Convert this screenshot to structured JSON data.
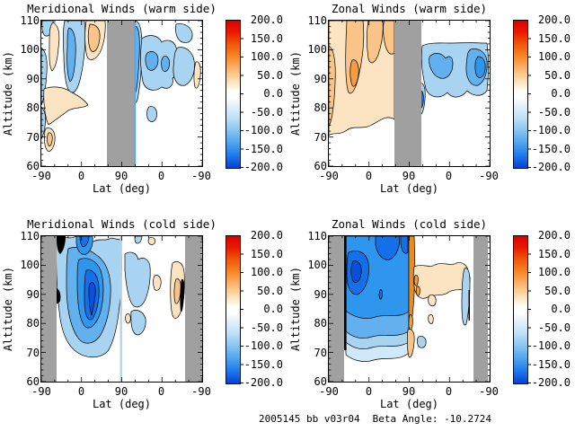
{
  "figure": {
    "caption_left": "2005145 bb v03r04",
    "caption_right": "Beta Angle: -10.2724"
  },
  "axes": {
    "xlabel": "Lat (deg)",
    "ylabel": "Altitude (km)",
    "x_ticks": [
      "-90",
      "0",
      "90",
      "0",
      "-90"
    ],
    "y_ticks": [
      "110",
      "100",
      "90",
      "80",
      "70",
      "60"
    ],
    "cbar_ticks": [
      "200.0",
      "150.0",
      "100.0",
      "50.0",
      "0.0",
      "-50.0",
      "-100.0",
      "-150.0",
      "-200.0"
    ]
  },
  "panels": [
    {
      "title": "Meridional Winds (warm side)"
    },
    {
      "title": "Zonal Winds (warm side)"
    },
    {
      "title": "Meridional Winds (cold side)"
    },
    {
      "title": "Zonal Winds (cold side)"
    }
  ],
  "colors": {
    "gray_mask": "#a0a0a0",
    "colorbar_top_red": "#dd0000",
    "colorbar_zero_white": "#ffffff",
    "colorbar_bottom_blue": "#0a3fd4",
    "neg_palest": "#cfe8fa",
    "neg_light": "#a8d4f2",
    "neg_mid": "#62b0ee",
    "neg_strong": "#2e96ec",
    "neg_deep": "#1470e8",
    "neg_darkest": "#0a50d8",
    "pos_palest": "#fce4c2",
    "pos_light": "#f8c488",
    "pos_mid": "#f39c42",
    "pos_strong": "#ef8a1c"
  },
  "chart_data": [
    {
      "type": "contour",
      "panel": "top-left",
      "title": "Meridional Winds (warm side)",
      "xlabel": "Lat (deg)",
      "ylabel": "Altitude (km)",
      "x_ticks": [
        -90,
        0,
        90,
        0,
        -90
      ],
      "x_axis_structure": "latitude sweeps -90 to +90 (ascending, left half) then +90 back to -90 (descending, right half)",
      "ylim": [
        60,
        110
      ],
      "y_ticks": [
        60,
        70,
        80,
        90,
        100,
        110
      ],
      "colorbar": {
        "min": -200.0,
        "max": 200.0,
        "tick_interval": 50.0
      },
      "masked_gray_band": "poleward of about +57 deg around the +90 crossing",
      "features": [
        {
          "region": "ascending lat -75..-35, 80-110 km",
          "value": "weak positive cells +25 to +75"
        },
        {
          "region": "ascending lat -55..-5, 95-110 km",
          "value": "weak negative cells -25 to -75"
        },
        {
          "region": "descending lat 60..-60, 78-105 km",
          "value": "broad weak negative region -25 to -75"
        },
        {
          "region": "ascending lat -85..-70, 72-78 km",
          "value": "small positive cell about +50"
        }
      ]
    },
    {
      "type": "contour",
      "panel": "top-right",
      "title": "Zonal Winds (warm side)",
      "xlabel": "Lat (deg)",
      "ylabel": "Altitude (km)",
      "x_ticks": [
        -90,
        0,
        90,
        0,
        -90
      ],
      "x_axis_structure": "latitude sweeps -90 to +90 (ascending) then back to -90 (descending)",
      "ylim": [
        60,
        110
      ],
      "y_ticks": [
        60,
        70,
        80,
        90,
        100,
        110
      ],
      "colorbar": {
        "min": -200.0,
        "max": 200.0,
        "tick_interval": 50.0
      },
      "masked_gray_band": "poleward of about +57 deg around the +90 crossing",
      "features": [
        {
          "region": "ascending lat -90..55, 68-110 km",
          "value": "broad positive region +25 to +100 with stronger streaks near lat -65 and -10..20"
        },
        {
          "region": "descending lat 55..-90, 83-104 km",
          "value": "broad negative region -25 to -100, strongest near lat -80..-90"
        },
        {
          "region": "descending lat ~75, 75-88 km",
          "value": "small stronger negative cell to about -125"
        }
      ]
    },
    {
      "type": "contour",
      "panel": "bottom-left",
      "title": "Meridional Winds (cold side)",
      "xlabel": "Lat (deg)",
      "ylabel": "Altitude (km)",
      "x_ticks": [
        -90,
        0,
        90,
        0,
        -90
      ],
      "x_axis_structure": "latitude sweeps -90 to +90 (ascending) then back to -90 (descending)",
      "ylim": [
        60,
        110
      ],
      "y_ticks": [
        60,
        70,
        80,
        90,
        100,
        110
      ],
      "colorbar": {
        "min": -200.0,
        "max": 200.0,
        "tick_interval": 50.0
      },
      "masked_gray_band": "ascending lat -90..-56 and descending lat -52..-90",
      "features": [
        {
          "region": "ascending lat -55..90, 72-110 km",
          "value": "large negative region, nested minima reaching about -150 near lat 30-55 at 80-100 km"
        },
        {
          "region": "descending lat 80..20, 75-105 km",
          "value": "weak negative cells -25 to -50"
        },
        {
          "region": "descending lat 0..-45, 85-105 km",
          "value": "weak positive cells +25 to +75"
        }
      ]
    },
    {
      "type": "contour",
      "panel": "bottom-right",
      "title": "Zonal Winds (cold side)",
      "xlabel": "Lat (deg)",
      "ylabel": "Altitude (km)",
      "x_ticks": [
        -90,
        0,
        90,
        0,
        -90
      ],
      "x_axis_structure": "latitude sweeps -90 to +90 (ascending) then back to -90 (descending)",
      "ylim": [
        60,
        110
      ],
      "y_ticks": [
        60,
        70,
        80,
        90,
        100,
        110
      ],
      "colorbar": {
        "min": -200.0,
        "max": 200.0,
        "tick_interval": 50.0
      },
      "masked_gray_band": "ascending lat -90..-56 and descending lat -52..-90",
      "features": [
        {
          "region": "ascending lat -60..90, 73-110 km",
          "value": "strong negative region -50 to -175 with deep cores near lat -45..-20 at 85-105 km and lat 0..35 above 100 km"
        },
        {
          "region": "layered bands 73-82 km ascending",
          "value": "negative values weakening downward -75 to -25"
        },
        {
          "region": "narrow stripe just past +90, 78-110 km",
          "value": "strong positive stripe +75 to +125"
        },
        {
          "region": "descending lat 85..10, 85-100 km",
          "value": "weak positive region +25 to +50"
        },
        {
          "region": "descending near lat -55, 88-102 km",
          "value": "weak negative sliver about -25"
        }
      ]
    }
  ]
}
